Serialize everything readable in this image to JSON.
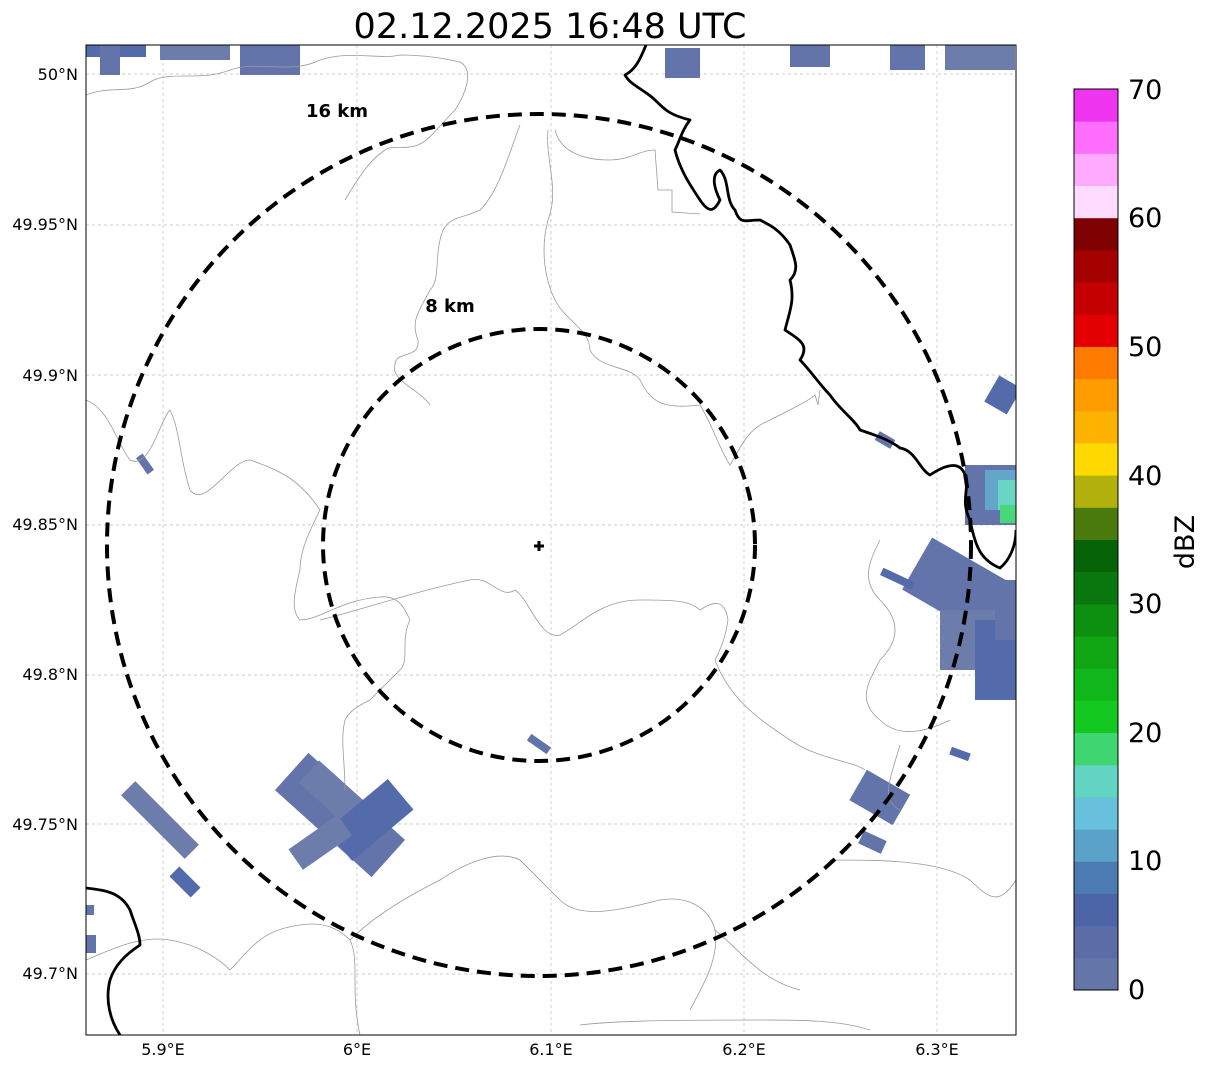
{
  "title": "02.12.2025 16:48 UTC",
  "map": {
    "lon_ticks": [
      "5.9°E",
      "6°E",
      "6.1°E",
      "6.2°E",
      "6.3°E"
    ],
    "lat_ticks": [
      "50°N",
      "49.95°N",
      "49.9°N",
      "49.85°N",
      "49.8°N",
      "49.75°N",
      "49.7°N"
    ],
    "grid": true,
    "center_marker": "radar-site-cross",
    "center": {
      "lon": 6.095,
      "lat": 49.843
    },
    "rings": [
      {
        "label": "8 km",
        "radius_km": 8,
        "style": "dashed"
      },
      {
        "label": "16 km",
        "radius_km": 16,
        "style": "dashed"
      }
    ],
    "colors": {
      "rings": "#000000",
      "border": "#000000",
      "admin_lines": "#9a9a9a",
      "grid": "#bdbdbd"
    }
  },
  "colorbar": {
    "label": "dBZ",
    "ticks": [
      "0",
      "10",
      "20",
      "30",
      "40",
      "50",
      "60",
      "70"
    ],
    "min": 0,
    "max": 70,
    "step": 2.5,
    "colors": [
      "#6577a8",
      "#5b6da6",
      "#4a64a6",
      "#4b7bb2",
      "#5ba2c8",
      "#68c1dc",
      "#61d4c2",
      "#3fd672",
      "#13c91f",
      "#11b71a",
      "#10a512",
      "#0d8f10",
      "#0b780f",
      "#076308",
      "#4a7a0c",
      "#b0b10a",
      "#ffd900",
      "#ffb300",
      "#ff9c00",
      "#ff7b00",
      "#e30000",
      "#c50000",
      "#a40000",
      "#7e0000",
      "#ffdcff",
      "#ffaaff",
      "#ff6eff",
      "#ef35ef"
    ]
  }
}
